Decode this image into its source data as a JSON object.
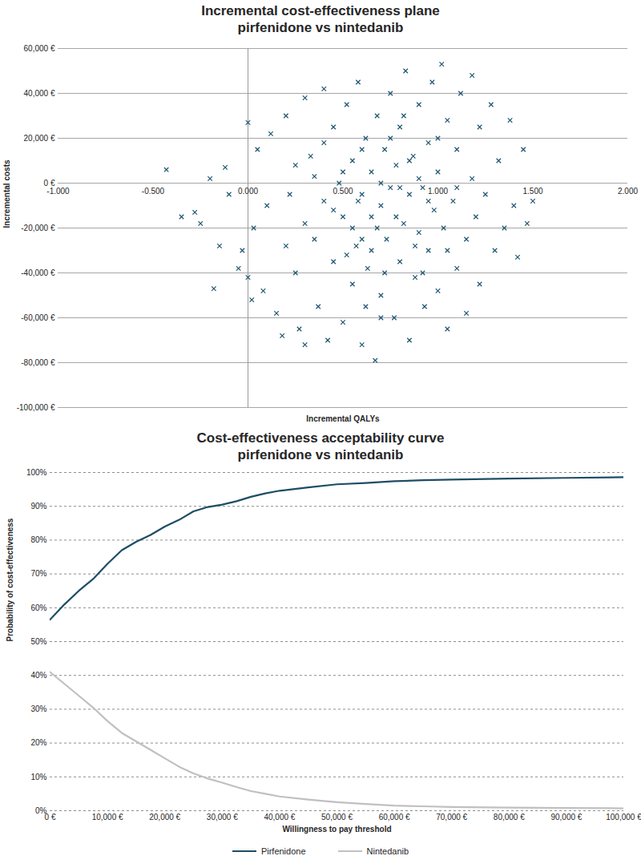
{
  "chart_data": [
    {
      "type": "scatter",
      "title": "Incremental cost-effectiveness plane",
      "subtitle": "pirfenidone vs nintedanib",
      "xlabel": "Incremental QALYs",
      "ylabel": "Incremental costs",
      "color": "#1d5670",
      "marker": "x",
      "grid": true,
      "xlim": [
        -1,
        2
      ],
      "xticks": [
        {
          "value": -1,
          "label": "-1.000"
        },
        {
          "value": -0.5,
          "label": "-0.500"
        },
        {
          "value": 0,
          "label": "0.000"
        },
        {
          "value": 0.5,
          "label": "0.500"
        },
        {
          "value": 1,
          "label": "1.000"
        },
        {
          "value": 1.5,
          "label": "1.500"
        },
        {
          "value": 2,
          "label": "2.000"
        }
      ],
      "ylim": [
        -100000,
        60000
      ],
      "yticks": [
        {
          "value": 60000,
          "label": "60,000 €"
        },
        {
          "value": 40000,
          "label": "40,000 €"
        },
        {
          "value": 20000,
          "label": "20,000 €"
        },
        {
          "value": 0,
          "label": "0 €"
        },
        {
          "value": -20000,
          "label": "-20,000 €"
        },
        {
          "value": -40000,
          "label": "-40,000 €"
        },
        {
          "value": -60000,
          "label": "-60,000 €"
        },
        {
          "value": -80000,
          "label": "-80,000 €"
        },
        {
          "value": -100000,
          "label": "-100,000 €"
        }
      ],
      "x": [
        -0.43,
        -0.35,
        -0.28,
        -0.25,
        -0.2,
        -0.18,
        -0.15,
        -0.12,
        -0.1,
        -0.05,
        -0.03,
        0,
        0,
        0.02,
        0.03,
        0.05,
        0.08,
        0.1,
        0.12,
        0.15,
        0.18,
        0.2,
        0.22,
        0.25,
        0.27,
        0.3,
        0.3,
        0.33,
        0.35,
        0.37,
        0.4,
        0.4,
        0.42,
        0.45,
        0.45,
        0.48,
        0.5,
        0.5,
        0.52,
        0.55,
        0.55,
        0.57,
        0.58,
        0.6,
        0.6,
        0.62,
        0.63,
        0.65,
        0.65,
        0.67,
        0.68,
        0.7,
        0.7,
        0.72,
        0.73,
        0.75,
        0.75,
        0.77,
        0.78,
        0.8,
        0.8,
        0.82,
        0.83,
        0.85,
        0.85,
        0.87,
        0.88,
        0.9,
        0.9,
        0.92,
        0.93,
        0.95,
        0.95,
        0.97,
        0.98,
        1,
        1,
        1.02,
        1.03,
        1.05,
        1.05,
        1.08,
        1.1,
        1.1,
        1.12,
        1.15,
        1.15,
        1.18,
        1.18,
        1.2,
        1.22,
        1.22,
        1.25,
        1.28,
        1.3,
        1.32,
        1.35,
        1.38,
        1.4,
        1.42,
        1.45,
        1.47,
        1.5,
        0.5,
        0.55,
        0.6,
        0.65,
        0.7,
        0.72,
        0.75,
        0.78,
        0.8,
        0.85,
        0.88,
        0.6,
        0.45,
        0.4,
        0.35,
        0.95,
        1,
        0.68,
        0.58,
        0.82,
        0.92,
        0.52,
        0.7,
        0.62,
        0.3,
        0.25,
        0.2,
        1.1,
        1.05,
        0.9
      ],
      "values": [
        6000,
        -15000,
        -13000,
        -18000,
        2000,
        -47000,
        -28000,
        7000,
        -5000,
        -38000,
        -30000,
        27000,
        -42000,
        -52000,
        -20000,
        15000,
        -48000,
        -10000,
        22000,
        -58000,
        -68000,
        30000,
        -5000,
        -40000,
        -65000,
        38000,
        -72000,
        12000,
        -25000,
        -55000,
        42000,
        -8000,
        -70000,
        25000,
        -35000,
        0,
        -15000,
        -62000,
        35000,
        -45000,
        10000,
        -28000,
        45000,
        -5000,
        -72000,
        20000,
        -38000,
        -15000,
        5000,
        -79000,
        30000,
        -50000,
        -10000,
        15000,
        -25000,
        40000,
        -2000,
        -60000,
        8000,
        -35000,
        25000,
        -18000,
        50000,
        -5000,
        -70000,
        12000,
        -42000,
        35000,
        -22000,
        -2000,
        -55000,
        18000,
        -30000,
        45000,
        -12000,
        5000,
        -48000,
        53000,
        -20000,
        28000,
        -65000,
        -8000,
        15000,
        -38000,
        40000,
        -25000,
        -58000,
        48000,
        2000,
        -15000,
        25000,
        -45000,
        -5000,
        35000,
        -30000,
        10000,
        -20000,
        28000,
        -10000,
        -33000,
        15000,
        -18000,
        -8000,
        5000,
        -20000,
        15000,
        -30000,
        0,
        -40000,
        20000,
        -15000,
        -2000,
        10000,
        -28000,
        -25000,
        -12000,
        18000,
        3000,
        -8000,
        20000,
        -20000,
        -8000,
        30000,
        -40000,
        -32000,
        -60000,
        -55000,
        -18000,
        8000,
        -28000,
        -2000,
        -30000,
        2000
      ]
    },
    {
      "type": "line",
      "title": "Cost-effectiveness acceptability curve",
      "subtitle": "pirfenidone vs nintedanib",
      "xlabel": "Willingness to pay threshold",
      "ylabel": "Probability of cost-effectiveness",
      "grid": true,
      "legend": "bottom",
      "xlim": [
        0,
        100000
      ],
      "xticks": [
        {
          "value": 0,
          "label": "0 €"
        },
        {
          "value": 10000,
          "label": "10,000 €"
        },
        {
          "value": 20000,
          "label": "20,000 €"
        },
        {
          "value": 30000,
          "label": "30,000 €"
        },
        {
          "value": 40000,
          "label": "40,000 €"
        },
        {
          "value": 50000,
          "label": "50,000 €"
        },
        {
          "value": 60000,
          "label": "60,000 €"
        },
        {
          "value": 70000,
          "label": "70,000 €"
        },
        {
          "value": 80000,
          "label": "80,000 €"
        },
        {
          "value": 90000,
          "label": "90,000 €"
        },
        {
          "value": 100000,
          "label": "100,000 €"
        }
      ],
      "ylim": [
        0,
        100
      ],
      "yticks": [
        {
          "value": 0,
          "label": "0%"
        },
        {
          "value": 10,
          "label": "10%"
        },
        {
          "value": 20,
          "label": "20%"
        },
        {
          "value": 30,
          "label": "30%"
        },
        {
          "value": 40,
          "label": "40%"
        },
        {
          "value": 50,
          "label": "50%"
        },
        {
          "value": 60,
          "label": "60%"
        },
        {
          "value": 70,
          "label": "70%"
        },
        {
          "value": 80,
          "label": "80%"
        },
        {
          "value": 90,
          "label": "90%"
        },
        {
          "value": 100,
          "label": "100%"
        }
      ],
      "x": [
        0,
        2500,
        5000,
        7500,
        10000,
        12500,
        15000,
        17500,
        20000,
        22500,
        25000,
        27500,
        30000,
        32500,
        35000,
        37500,
        40000,
        45000,
        50000,
        55000,
        60000,
        65000,
        70000,
        80000,
        90000,
        100000
      ],
      "series": [
        {
          "name": "Pirfenidone",
          "color": "#1e4d65",
          "values": [
            56.5,
            61,
            65,
            68.5,
            73,
            77,
            79.5,
            81.5,
            84,
            86,
            88.5,
            89.8,
            90.5,
            91.5,
            92.8,
            93.8,
            94.6,
            95.6,
            96.5,
            96.9,
            97.4,
            97.7,
            97.9,
            98.2,
            98.4,
            98.6
          ]
        },
        {
          "name": "Nintedanib",
          "color": "#c0c0c0",
          "values": [
            41,
            37.5,
            34,
            30.5,
            26.5,
            23,
            20.5,
            18,
            15.5,
            13,
            11,
            9.5,
            8.3,
            7,
            5.8,
            5,
            4.2,
            3.3,
            2.5,
            2,
            1.5,
            1.3,
            1.1,
            0.9,
            0.8,
            0.7
          ]
        }
      ]
    }
  ]
}
